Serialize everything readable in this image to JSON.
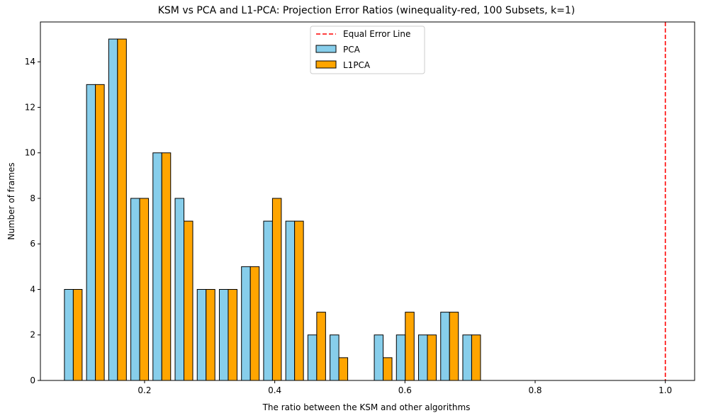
{
  "chart_data": {
    "type": "bar",
    "title": "KSM vs PCA and L1-PCA: Projection Error Ratios (winequality-red, 100 Subsets, k=1)",
    "xlabel": "The ratio between the KSM and other algorithms",
    "ylabel": "Number of frames",
    "xlim": [
      0.04,
      1.045
    ],
    "ylim": [
      0,
      15.75
    ],
    "xticks": [
      0.2,
      0.4,
      0.6,
      0.8,
      1.0
    ],
    "xtick_labels": [
      "0.2",
      "0.4",
      "0.6",
      "0.8",
      "1.0"
    ],
    "yticks": [
      0,
      2,
      4,
      6,
      8,
      10,
      12,
      14
    ],
    "ytick_labels": [
      "0",
      "2",
      "4",
      "6",
      "8",
      "10",
      "12",
      "14"
    ],
    "bin_centers": [
      0.0905,
      0.1245,
      0.1585,
      0.1925,
      0.2265,
      0.2605,
      0.2945,
      0.3285,
      0.3625,
      0.3965,
      0.4305,
      0.4645,
      0.4985,
      0.5325,
      0.5665,
      0.6005,
      0.6345,
      0.6685,
      0.7025
    ],
    "bar_width": 0.0136,
    "series": [
      {
        "name": "PCA",
        "color": "#87ceeb",
        "values": [
          4,
          13,
          15,
          8,
          10,
          8,
          4,
          4,
          5,
          7,
          7,
          2,
          2,
          0,
          2,
          2,
          2,
          3,
          2
        ]
      },
      {
        "name": "L1PCA",
        "color": "#ffa500",
        "values": [
          4,
          13,
          15,
          8,
          10,
          7,
          4,
          4,
          5,
          8,
          7,
          3,
          1,
          0,
          1,
          3,
          2,
          3,
          2
        ]
      }
    ],
    "reference_line": {
      "name": "Equal Error Line",
      "x": 1.0,
      "color": "#ff0000",
      "style": "dashed"
    },
    "legend_position": "upper-center",
    "grid": false
  }
}
